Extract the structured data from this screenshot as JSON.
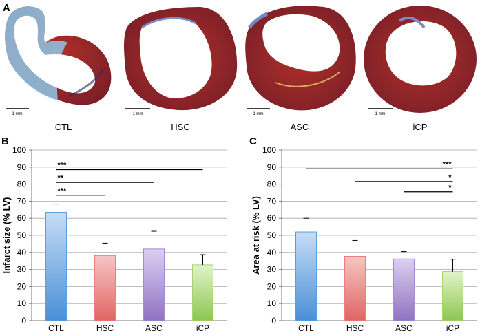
{
  "panel_a": {
    "label": "A",
    "scale_bar_label": "1 mm",
    "images": [
      {
        "caption": "CTL",
        "depiction": "heart section, thin infarcted wall"
      },
      {
        "caption": "HSC",
        "depiction": "heart section"
      },
      {
        "caption": "ASC",
        "depiction": "heart section"
      },
      {
        "caption": "iCP",
        "depiction": "heart section"
      }
    ]
  },
  "colors": {
    "CTL": "#5b9ee0",
    "HSC": "#ec7e7c",
    "ASC": "#a48dcf",
    "iCP": "#a4d66e",
    "grid": "#a8a8a8",
    "axis": "#7a7a7a",
    "text": "#000000"
  },
  "chart_data": [
    {
      "panel_label": "B",
      "type": "bar",
      "categories": [
        "CTL",
        "HSC",
        "ASC",
        "iCP"
      ],
      "values": [
        63.5,
        38.2,
        42,
        32.7
      ],
      "errors": [
        4.8,
        7.2,
        10.4,
        6.0
      ],
      "ylabel": "Infarct size (% LV)",
      "xlabel": "",
      "ylim": [
        0,
        100
      ],
      "yticks": [
        0,
        10,
        20,
        30,
        40,
        50,
        60,
        70,
        80,
        90,
        100
      ],
      "grid": true,
      "significance": [
        {
          "from": "CTL",
          "to": "iCP",
          "y": 88.5,
          "label": "***"
        },
        {
          "from": "CTL",
          "to": "ASC",
          "y": 81,
          "label": "**"
        },
        {
          "from": "CTL",
          "to": "HSC",
          "y": 73.5,
          "label": "***"
        }
      ]
    },
    {
      "panel_label": "C",
      "type": "bar",
      "categories": [
        "CTL",
        "HSC",
        "ASC",
        "iCP"
      ],
      "values": [
        52,
        37.7,
        36.2,
        28.8
      ],
      "errors": [
        8.0,
        9.3,
        4.3,
        7.2
      ],
      "ylabel": "Area at risk (% LV)",
      "xlabel": "",
      "ylim": [
        0,
        100
      ],
      "yticks": [
        0,
        10,
        20,
        30,
        40,
        50,
        60,
        70,
        80,
        90,
        100
      ],
      "grid": true,
      "significance": [
        {
          "from": "CTL",
          "to": "iCP",
          "y": 89,
          "label": "***"
        },
        {
          "from": "HSC",
          "to": "iCP",
          "y": 81.5,
          "label": "*"
        },
        {
          "from": "ASC",
          "to": "iCP",
          "y": 75.5,
          "label": "*"
        }
      ]
    }
  ]
}
